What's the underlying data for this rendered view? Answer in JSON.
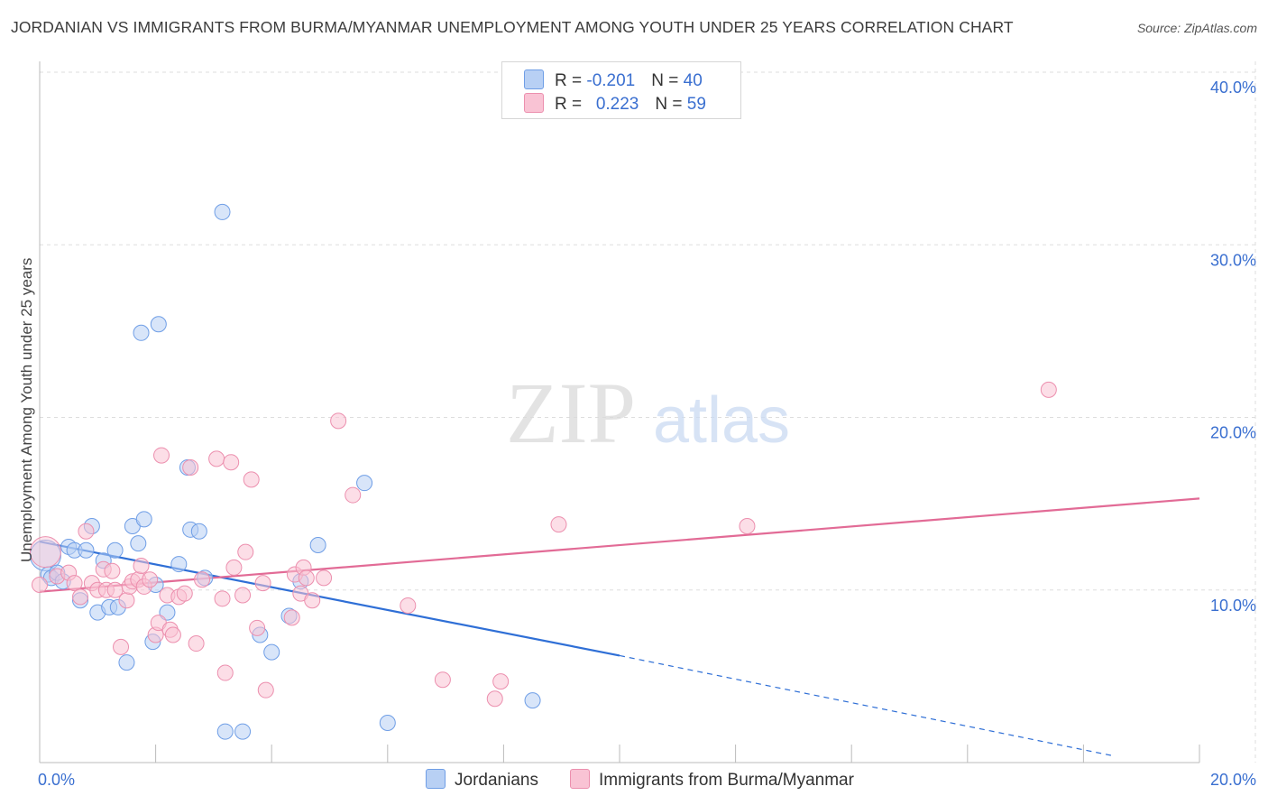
{
  "title": "JORDANIAN VS IMMIGRANTS FROM BURMA/MYANMAR UNEMPLOYMENT AMONG YOUTH UNDER 25 YEARS CORRELATION CHART",
  "source": "Source: ZipAtlas.com",
  "watermark": {
    "zip": "ZIP",
    "atlas": "atlas"
  },
  "legend": {
    "rows": [
      {
        "r_label": "R = ",
        "r_value": "-0.201",
        "n_label": "N = ",
        "n_value": "40"
      },
      {
        "r_label": "R = ",
        "r_value": "0.223",
        "n_label": "N = ",
        "n_value": "59"
      }
    ]
  },
  "colors": {
    "blue_fill": "#b8d0f4",
    "blue_stroke": "#6f9ee6",
    "blue_line": "#2f6fd6",
    "pink_fill": "#f9c3d4",
    "pink_stroke": "#ec8fae",
    "pink_line": "#e26b96",
    "axis_text": "#3a6fd0",
    "grid": "#dddddd"
  },
  "chart_data": {
    "type": "scatter",
    "title": "JORDANIAN VS IMMIGRANTS FROM BURMA/MYANMAR UNEMPLOYMENT AMONG YOUTH UNDER 25 YEARS CORRELATION CHART",
    "xlabel": "",
    "ylabel": "Unemployment Among Youth under 25 years",
    "xlim": [
      0,
      20
    ],
    "ylim": [
      0,
      40
    ],
    "x_tick_labels": [
      "0.0%",
      "20.0%"
    ],
    "y_ticks": [
      10,
      20,
      30,
      40
    ],
    "y_tick_labels": [
      "10.0%",
      "20.0%",
      "30.0%",
      "40.0%"
    ],
    "grid": true,
    "legend_position": "bottom",
    "series": [
      {
        "name": "Jordanians",
        "points": [
          [
            0.1,
            12.0
          ],
          [
            0.15,
            10.9
          ],
          [
            0.2,
            10.7
          ],
          [
            0.3,
            11.0
          ],
          [
            0.4,
            10.5
          ],
          [
            0.5,
            12.5
          ],
          [
            0.6,
            12.3
          ],
          [
            0.7,
            9.4
          ],
          [
            0.8,
            12.3
          ],
          [
            0.9,
            13.7
          ],
          [
            1.0,
            8.7
          ],
          [
            1.1,
            11.7
          ],
          [
            1.2,
            9.0
          ],
          [
            1.3,
            12.3
          ],
          [
            1.35,
            9.0
          ],
          [
            1.5,
            5.8
          ],
          [
            1.6,
            13.7
          ],
          [
            1.7,
            12.7
          ],
          [
            1.75,
            24.9
          ],
          [
            1.8,
            14.1
          ],
          [
            1.95,
            7.0
          ],
          [
            2.05,
            25.4
          ],
          [
            2.0,
            10.3
          ],
          [
            2.2,
            8.7
          ],
          [
            2.4,
            11.5
          ],
          [
            2.55,
            17.1
          ],
          [
            2.6,
            13.5
          ],
          [
            2.75,
            13.4
          ],
          [
            3.15,
            31.9
          ],
          [
            3.2,
            1.8
          ],
          [
            3.5,
            1.8
          ],
          [
            3.8,
            7.4
          ],
          [
            4.0,
            6.4
          ],
          [
            4.3,
            8.5
          ],
          [
            4.5,
            10.5
          ],
          [
            4.8,
            12.6
          ],
          [
            2.85,
            10.7
          ],
          [
            5.6,
            16.2
          ],
          [
            6.0,
            2.3
          ],
          [
            8.5,
            3.6
          ]
        ]
      },
      {
        "name": "Immigrants from Burma/Myanmar",
        "points": [
          [
            0.1,
            12.2
          ],
          [
            0.3,
            10.8
          ],
          [
            0.5,
            11.0
          ],
          [
            0.6,
            10.4
          ],
          [
            0.7,
            9.6
          ],
          [
            0.8,
            13.4
          ],
          [
            0.9,
            10.4
          ],
          [
            1.0,
            10.0
          ],
          [
            1.1,
            11.2
          ],
          [
            1.15,
            10.0
          ],
          [
            1.25,
            11.1
          ],
          [
            1.3,
            10.0
          ],
          [
            1.4,
            6.7
          ],
          [
            1.5,
            9.4
          ],
          [
            1.55,
            10.2
          ],
          [
            1.6,
            10.5
          ],
          [
            1.7,
            10.6
          ],
          [
            1.75,
            11.4
          ],
          [
            1.8,
            10.2
          ],
          [
            1.9,
            10.6
          ],
          [
            2.0,
            7.4
          ],
          [
            2.05,
            8.1
          ],
          [
            2.1,
            17.8
          ],
          [
            2.2,
            9.7
          ],
          [
            2.25,
            7.7
          ],
          [
            2.3,
            7.4
          ],
          [
            2.4,
            9.6
          ],
          [
            2.5,
            9.8
          ],
          [
            2.6,
            17.1
          ],
          [
            2.7,
            6.9
          ],
          [
            2.8,
            10.6
          ],
          [
            3.05,
            17.6
          ],
          [
            3.15,
            9.5
          ],
          [
            3.2,
            5.2
          ],
          [
            3.3,
            17.4
          ],
          [
            3.35,
            11.3
          ],
          [
            3.5,
            9.7
          ],
          [
            3.55,
            12.2
          ],
          [
            3.65,
            16.4
          ],
          [
            3.75,
            7.8
          ],
          [
            3.85,
            10.4
          ],
          [
            3.9,
            4.2
          ],
          [
            4.35,
            8.4
          ],
          [
            4.4,
            10.9
          ],
          [
            4.5,
            9.8
          ],
          [
            4.55,
            11.3
          ],
          [
            4.6,
            10.7
          ],
          [
            4.7,
            9.4
          ],
          [
            4.9,
            10.7
          ],
          [
            5.15,
            19.8
          ],
          [
            5.4,
            15.5
          ],
          [
            6.35,
            9.1
          ],
          [
            6.95,
            4.8
          ],
          [
            7.85,
            3.7
          ],
          [
            7.95,
            4.7
          ],
          [
            8.95,
            13.8
          ],
          [
            12.2,
            13.7
          ],
          [
            17.4,
            21.6
          ],
          [
            0.0,
            10.3
          ]
        ]
      }
    ],
    "trend_lines": [
      {
        "series": "Jordanians",
        "from": [
          0,
          12.8
        ],
        "to": [
          10,
          6.2
        ],
        "dashed_to": [
          18.5,
          0.4
        ]
      },
      {
        "series": "Immigrants from Burma/Myanmar",
        "from": [
          0,
          9.9
        ],
        "to": [
          20,
          15.3
        ]
      }
    ]
  }
}
